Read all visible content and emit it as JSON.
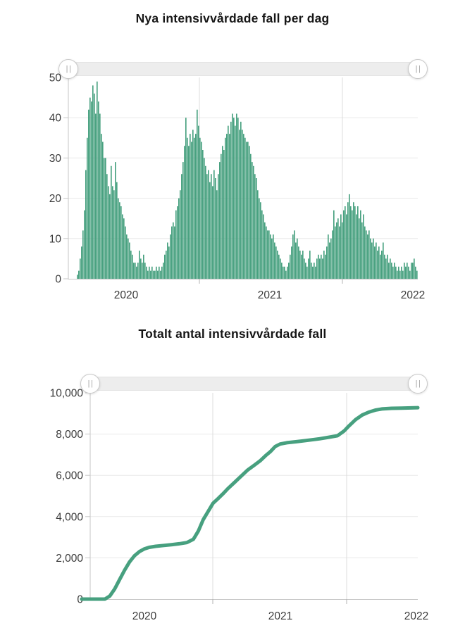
{
  "accent_color": "#47a07f",
  "sliders": {
    "handle_glyph": "||"
  },
  "chart_data": [
    {
      "type": "bar",
      "title": "Nya intensivvårdade fall per dag",
      "x_tick_labels": [
        "2020",
        "2021",
        "2022"
      ],
      "y_tick_labels": [
        "0",
        "10",
        "20",
        "30",
        "40",
        "50"
      ],
      "ylim": [
        0,
        50
      ],
      "grid": true,
      "legend": "none",
      "bar_color": "#47a07f",
      "values": [
        0,
        0,
        0,
        0,
        0,
        0,
        1,
        2,
        5,
        8,
        12,
        17,
        27,
        35,
        42,
        45,
        44,
        48,
        46,
        41,
        49,
        44,
        41,
        36,
        34,
        30,
        30,
        26,
        23,
        21,
        28,
        23,
        22,
        29,
        24,
        20,
        19,
        18,
        16,
        15,
        13,
        11,
        10,
        9,
        7,
        6,
        4,
        4,
        3,
        4,
        7,
        5,
        4,
        6,
        4,
        3,
        2,
        3,
        2,
        3,
        2,
        2,
        3,
        2,
        3,
        2,
        3,
        4,
        6,
        7,
        9,
        8,
        11,
        13,
        14,
        13,
        17,
        18,
        20,
        22,
        26,
        29,
        33,
        40,
        35,
        33,
        36,
        34,
        37,
        35,
        36,
        42,
        38,
        35,
        34,
        32,
        30,
        28,
        26,
        27,
        24,
        26,
        23,
        27,
        25,
        22,
        26,
        29,
        31,
        33,
        32,
        35,
        36,
        38,
        36,
        39,
        41,
        40,
        38,
        41,
        40,
        37,
        39,
        37,
        36,
        35,
        34,
        34,
        33,
        31,
        29,
        28,
        26,
        25,
        22,
        20,
        19,
        17,
        16,
        14,
        13,
        12,
        12,
        11,
        10,
        11,
        9,
        8,
        7,
        6,
        5,
        4,
        3,
        3,
        2,
        3,
        4,
        6,
        8,
        11,
        12,
        9,
        10,
        8,
        7,
        6,
        7,
        5,
        4,
        3,
        5,
        7,
        4,
        3,
        4,
        3,
        5,
        6,
        5,
        6,
        5,
        7,
        6,
        8,
        11,
        9,
        10,
        12,
        17,
        13,
        14,
        15,
        13,
        16,
        14,
        17,
        18,
        16,
        19,
        21,
        18,
        17,
        19,
        18,
        16,
        18,
        15,
        17,
        14,
        16,
        13,
        12,
        11,
        12,
        10,
        9,
        10,
        8,
        9,
        7,
        8,
        6,
        7,
        9,
        6,
        5,
        6,
        4,
        5,
        4,
        3,
        4,
        3,
        2,
        3,
        2,
        3,
        2,
        4,
        3,
        4,
        3,
        2,
        4,
        4,
        5,
        3,
        2
      ]
    },
    {
      "type": "line",
      "title": "Totalt antal intensivvårdade fall",
      "x_tick_labels": [
        "2020",
        "2021",
        "2022"
      ],
      "y_tick_labels": [
        "0",
        "2,000",
        "4,000",
        "6,000",
        "8,000",
        "10,000"
      ],
      "ylim": [
        0,
        10000
      ],
      "grid": true,
      "legend": "none",
      "line_color": "#47a07f",
      "points": [
        [
          -0.026,
          0
        ],
        [
          0.0,
          0
        ],
        [
          0.045,
          0
        ],
        [
          0.06,
          150
        ],
        [
          0.075,
          500
        ],
        [
          0.09,
          950
        ],
        [
          0.105,
          1400
        ],
        [
          0.12,
          1800
        ],
        [
          0.135,
          2100
        ],
        [
          0.15,
          2300
        ],
        [
          0.165,
          2430
        ],
        [
          0.18,
          2510
        ],
        [
          0.2,
          2560
        ],
        [
          0.225,
          2600
        ],
        [
          0.25,
          2640
        ],
        [
          0.275,
          2690
        ],
        [
          0.295,
          2740
        ],
        [
          0.315,
          2900
        ],
        [
          0.33,
          3300
        ],
        [
          0.345,
          3850
        ],
        [
          0.36,
          4250
        ],
        [
          0.375,
          4650
        ],
        [
          0.39,
          4870
        ],
        [
          0.405,
          5100
        ],
        [
          0.42,
          5350
        ],
        [
          0.44,
          5650
        ],
        [
          0.46,
          5950
        ],
        [
          0.48,
          6250
        ],
        [
          0.5,
          6480
        ],
        [
          0.52,
          6720
        ],
        [
          0.535,
          6950
        ],
        [
          0.55,
          7150
        ],
        [
          0.565,
          7400
        ],
        [
          0.58,
          7520
        ],
        [
          0.6,
          7580
        ],
        [
          0.63,
          7630
        ],
        [
          0.66,
          7690
        ],
        [
          0.7,
          7770
        ],
        [
          0.73,
          7850
        ],
        [
          0.755,
          7920
        ],
        [
          0.775,
          8150
        ],
        [
          0.79,
          8400
        ],
        [
          0.81,
          8700
        ],
        [
          0.83,
          8920
        ],
        [
          0.85,
          9060
        ],
        [
          0.87,
          9160
        ],
        [
          0.89,
          9220
        ],
        [
          0.92,
          9250
        ],
        [
          0.95,
          9260
        ],
        [
          1.0,
          9280
        ]
      ]
    }
  ]
}
